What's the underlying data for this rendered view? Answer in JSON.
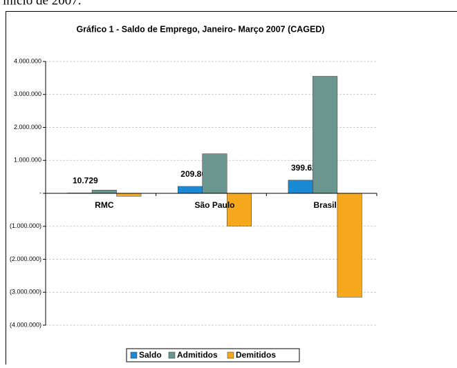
{
  "page_text": "início de 2007.",
  "chart_data": {
    "type": "bar",
    "title": "Gráfico 1 - Saldo de Emprego, Janeiro- Março 2007 (CAGED)",
    "categories": [
      "RMC",
      "São Paulo",
      "Brasil"
    ],
    "series": [
      {
        "name": "Saldo",
        "color": "#1a8ad4",
        "values": [
          10729,
          209805,
          399628
        ],
        "value_labels": [
          "10.729",
          "209.805",
          "399.628"
        ]
      },
      {
        "name": "Admitidos",
        "color": "#6b9690",
        "values": [
          100000,
          1200000,
          3550000
        ]
      },
      {
        "name": "Demitidos",
        "color": "#f5a81c",
        "values": [
          -90000,
          -990000,
          -3150000
        ]
      }
    ],
    "ylim": [
      -4000000,
      4000000
    ],
    "yticks": [
      {
        "value": 4000000,
        "label": "4.000.000"
      },
      {
        "value": 3000000,
        "label": "3.000.000"
      },
      {
        "value": 2000000,
        "label": "2.000.000"
      },
      {
        "value": 1000000,
        "label": "1.000.000"
      },
      {
        "value": 0,
        "label": "-"
      },
      {
        "value": -1000000,
        "label": "(1.000.000)"
      },
      {
        "value": -2000000,
        "label": "(2.000.000)"
      },
      {
        "value": -3000000,
        "label": "(3.000.000)"
      },
      {
        "value": -4000000,
        "label": "(4.000.000)"
      }
    ],
    "grid": true,
    "legend": "bottom"
  }
}
